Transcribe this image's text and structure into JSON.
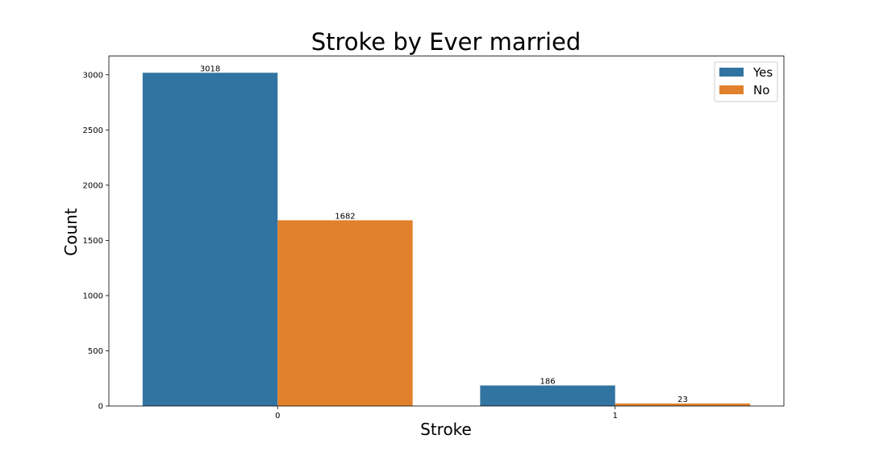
{
  "chart_data": {
    "type": "bar",
    "title": "Stroke by Ever married",
    "xlabel": "Stroke",
    "ylabel": "Count",
    "categories": [
      "0",
      "1"
    ],
    "series": [
      {
        "name": "Yes",
        "values": [
          3018,
          186
        ],
        "color": "#3274a1",
        "data_labels": [
          "3018",
          "186"
        ]
      },
      {
        "name": "No",
        "values": [
          1682,
          23
        ],
        "color": "#e1812c",
        "data_labels": [
          "1682",
          "23"
        ]
      }
    ],
    "ylim": [
      0,
      3170
    ],
    "yticks": [
      0,
      500,
      1000,
      1500,
      2000,
      2500,
      3000
    ],
    "ytick_labels": [
      "0",
      "500",
      "1000",
      "1500",
      "2000",
      "2500",
      "3000"
    ],
    "legend_position": "top-right",
    "grid": false
  }
}
